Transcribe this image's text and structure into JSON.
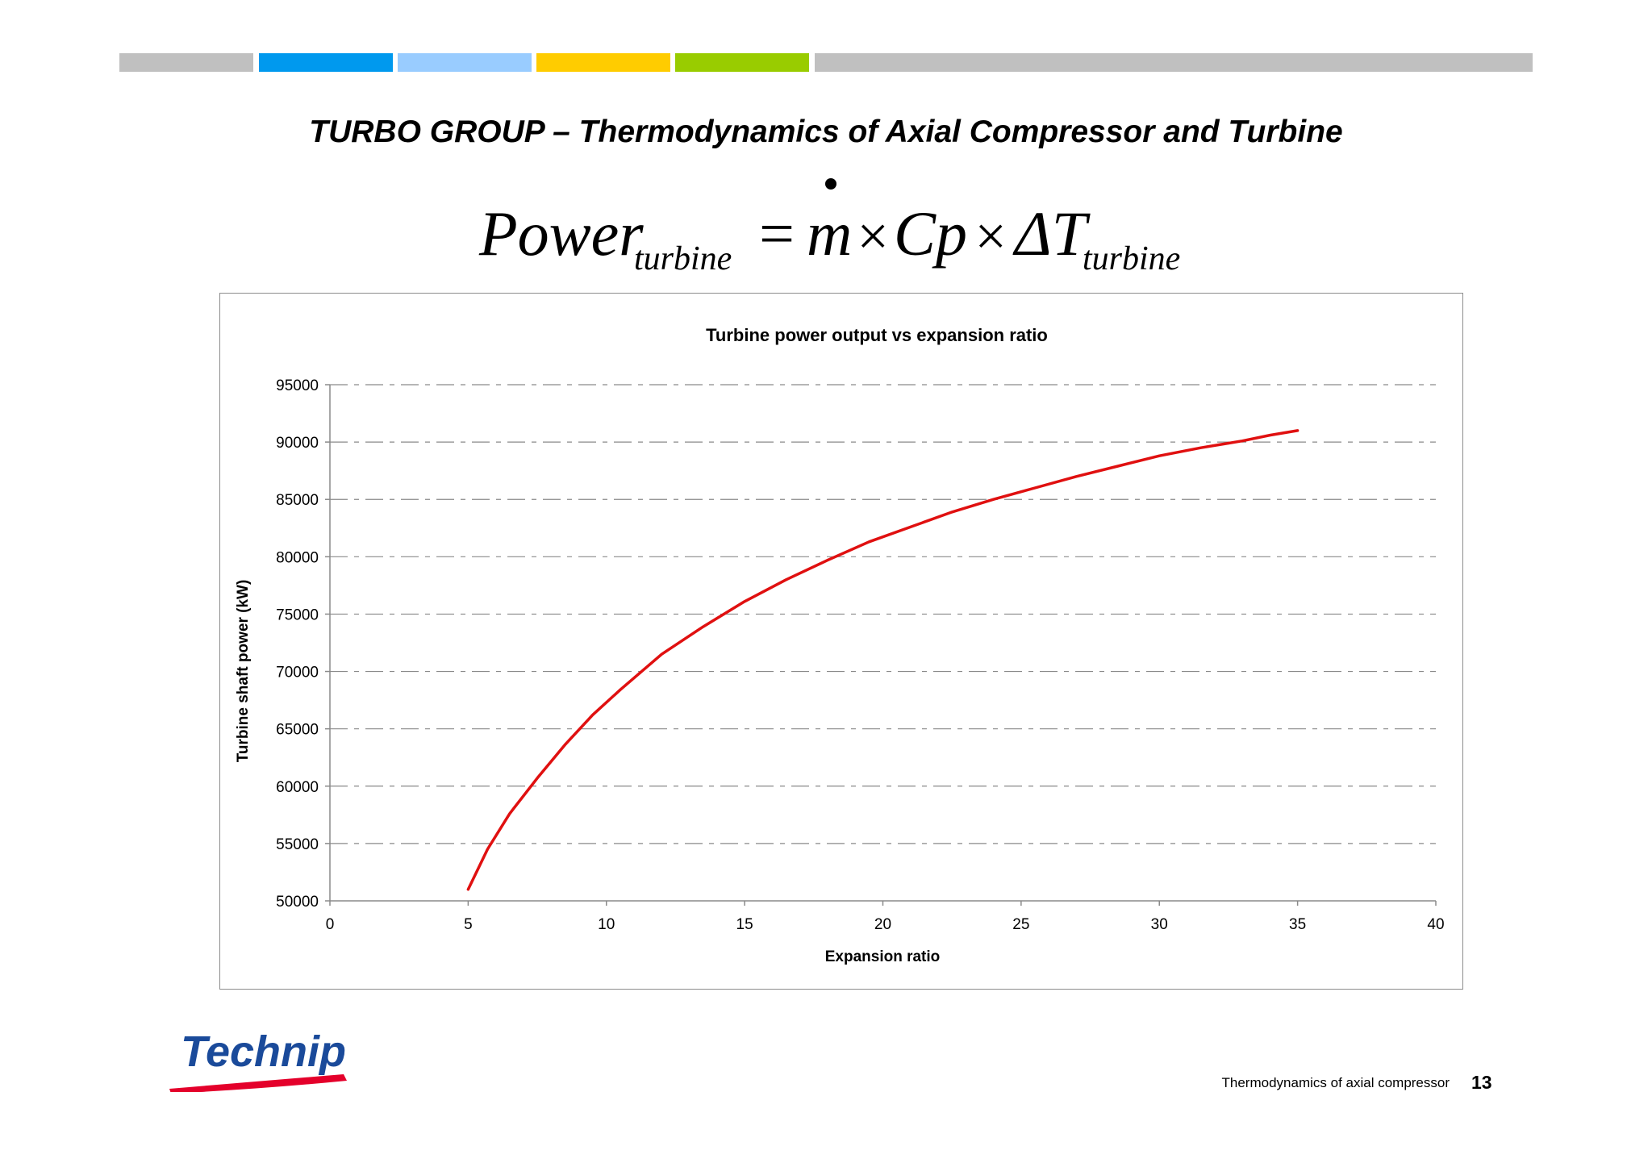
{
  "header": {
    "band_colors": [
      "#c0c0c0",
      "#0099ee",
      "#99ccff",
      "#ffcc00",
      "#99cc00",
      "#c0c0c0"
    ]
  },
  "slide": {
    "title": "TURBO GROUP – Thermodynamics of Axial Compressor and Turbine"
  },
  "formula": {
    "lhs": "Power",
    "lhs_sub": "turbine",
    "equals": "=",
    "m": "m",
    "times": "×",
    "cp": "Cp",
    "delta_t": "ΔT",
    "rhs_sub": "turbine"
  },
  "chart_data": {
    "type": "line",
    "title": "Turbine power output vs expansion ratio",
    "xlabel": "Expansion ratio",
    "ylabel": "Turbine shaft power (kW)",
    "xlim": [
      0,
      40
    ],
    "ylim": [
      50000,
      95000
    ],
    "xticks": [
      0,
      5,
      10,
      15,
      20,
      25,
      30,
      35,
      40
    ],
    "yticks": [
      50000,
      55000,
      60000,
      65000,
      70000,
      75000,
      80000,
      85000,
      90000,
      95000
    ],
    "grid": "horizontal dashed",
    "line_color": "#e01010",
    "series": [
      {
        "x": [
          5,
          5.7,
          6.5,
          7.5,
          8.5,
          9.5,
          10.5,
          12,
          13.5,
          15,
          16.5,
          18,
          19.5,
          21,
          22.5,
          24,
          25.5,
          27,
          28.5,
          30,
          31.5,
          33,
          34,
          35
        ],
        "values": [
          51000,
          54500,
          57600,
          60700,
          63600,
          66200,
          68400,
          71500,
          73900,
          76100,
          78000,
          79700,
          81300,
          82600,
          83900,
          85000,
          86000,
          87000,
          87900,
          88800,
          89500,
          90100,
          90600,
          91000
        ]
      }
    ]
  },
  "footer": {
    "logo_text": "Technip",
    "caption": "Thermodynamics of  axial compressor",
    "page_number": "13"
  }
}
